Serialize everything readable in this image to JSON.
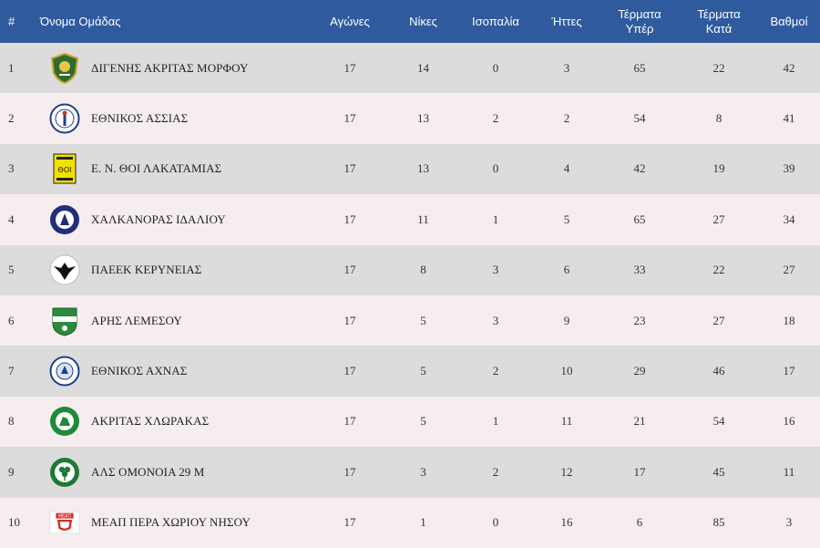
{
  "table": {
    "headers": [
      [
        "#"
      ],
      [
        "Όνομα Ομάδας"
      ],
      [
        "Αγώνες"
      ],
      [
        "Νίκες"
      ],
      [
        "Ισοπαλία"
      ],
      [
        "Ήττες"
      ],
      [
        "Τέρματα",
        "Υπέρ"
      ],
      [
        "Τέρματα",
        "Κατά"
      ],
      [
        "Βαθμοί"
      ]
    ],
    "rows": [
      {
        "pos": "1",
        "team": "ΔΙΓΕΝΗΣ ΑΚΡΙΤΑΣ ΜΟΡΦΟΥ",
        "logo": "digenis-akritas-crest-icon",
        "played": "17",
        "wins": "14",
        "draws": "0",
        "losses": "3",
        "goals_for": "65",
        "goals_against": "22",
        "points": "42"
      },
      {
        "pos": "2",
        "team": "ΕΘΝΙΚΟΣ ΑΣΣΙΑΣ",
        "logo": "ethnikos-assias-crest-icon",
        "played": "17",
        "wins": "13",
        "draws": "2",
        "losses": "2",
        "goals_for": "54",
        "goals_against": "8",
        "points": "41"
      },
      {
        "pos": "3",
        "team": "Ε. Ν. ΘΟΙ ΛΑΚΑΤΑΜΙΑΣ",
        "logo": "thoi-lakatamias-crest-icon",
        "played": "17",
        "wins": "13",
        "draws": "0",
        "losses": "4",
        "goals_for": "42",
        "goals_against": "19",
        "points": "39"
      },
      {
        "pos": "4",
        "team": "ΧΑΛΚΑΝΟΡΑΣ ΙΔΑΛΙΟΥ",
        "logo": "chalkanoras-crest-icon",
        "played": "17",
        "wins": "11",
        "draws": "1",
        "losses": "5",
        "goals_for": "65",
        "goals_against": "27",
        "points": "34"
      },
      {
        "pos": "5",
        "team": "ΠΑΕΕΚ ΚΕΡΥΝΕΙΑΣ",
        "logo": "paeek-eagle-crest-icon",
        "played": "17",
        "wins": "8",
        "draws": "3",
        "losses": "6",
        "goals_for": "33",
        "goals_against": "22",
        "points": "27"
      },
      {
        "pos": "6",
        "team": "ΑΡΗΣ ΛΕΜΕΣΟΥ",
        "logo": "aris-limassol-crest-icon",
        "played": "17",
        "wins": "5",
        "draws": "3",
        "losses": "9",
        "goals_for": "23",
        "goals_against": "27",
        "points": "18"
      },
      {
        "pos": "7",
        "team": "ΕΘΝΙΚΟΣ ΑΧΝΑΣ",
        "logo": "ethnikos-achnas-crest-icon",
        "played": "17",
        "wins": "5",
        "draws": "2",
        "losses": "10",
        "goals_for": "29",
        "goals_against": "46",
        "points": "17"
      },
      {
        "pos": "8",
        "team": "ΑΚΡΙΤΑΣ ΧΛΩΡΑΚΑΣ",
        "logo": "akritas-chlorakas-crest-icon",
        "played": "17",
        "wins": "5",
        "draws": "1",
        "losses": "11",
        "goals_for": "21",
        "goals_against": "54",
        "points": "16"
      },
      {
        "pos": "9",
        "team": "ΑΛΣ ΟΜΟΝΟΙΑ 29 Μ",
        "logo": "omonoia-29m-crest-icon",
        "played": "17",
        "wins": "3",
        "draws": "2",
        "losses": "12",
        "goals_for": "17",
        "goals_against": "45",
        "points": "11"
      },
      {
        "pos": "10",
        "team": "ΜΕΑΠ ΠΕΡΑ ΧΩΡΙΟΥ ΝΗΣΟΥ",
        "logo": "meap-crest-icon",
        "played": "17",
        "wins": "1",
        "draws": "0",
        "losses": "16",
        "goals_for": "6",
        "goals_against": "85",
        "points": "3"
      }
    ]
  },
  "colors": {
    "header_bg": "#2f5a9e",
    "row_odd": "#dcdcdc",
    "row_even": "#f6eeee"
  }
}
